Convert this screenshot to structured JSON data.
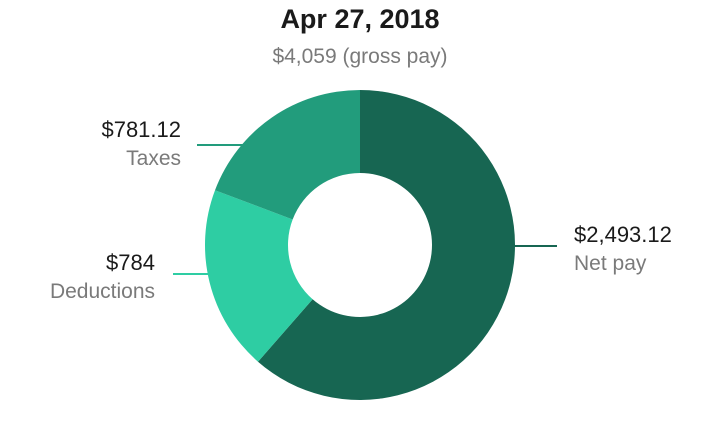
{
  "chart_data": {
    "type": "pie",
    "title": "Apr 27, 2018",
    "subtitle": "$4,059 (gross pay)",
    "slices": [
      {
        "label": "Net pay",
        "value_text": "$2,493.12",
        "value": 2493.12,
        "color": "#176652"
      },
      {
        "label": "Deductions",
        "value_text": "$784",
        "value": 784,
        "color": "#2ecda3"
      },
      {
        "label": "Taxes",
        "value_text": "$781.12",
        "value": 781.12,
        "color": "#229c7c"
      }
    ]
  }
}
